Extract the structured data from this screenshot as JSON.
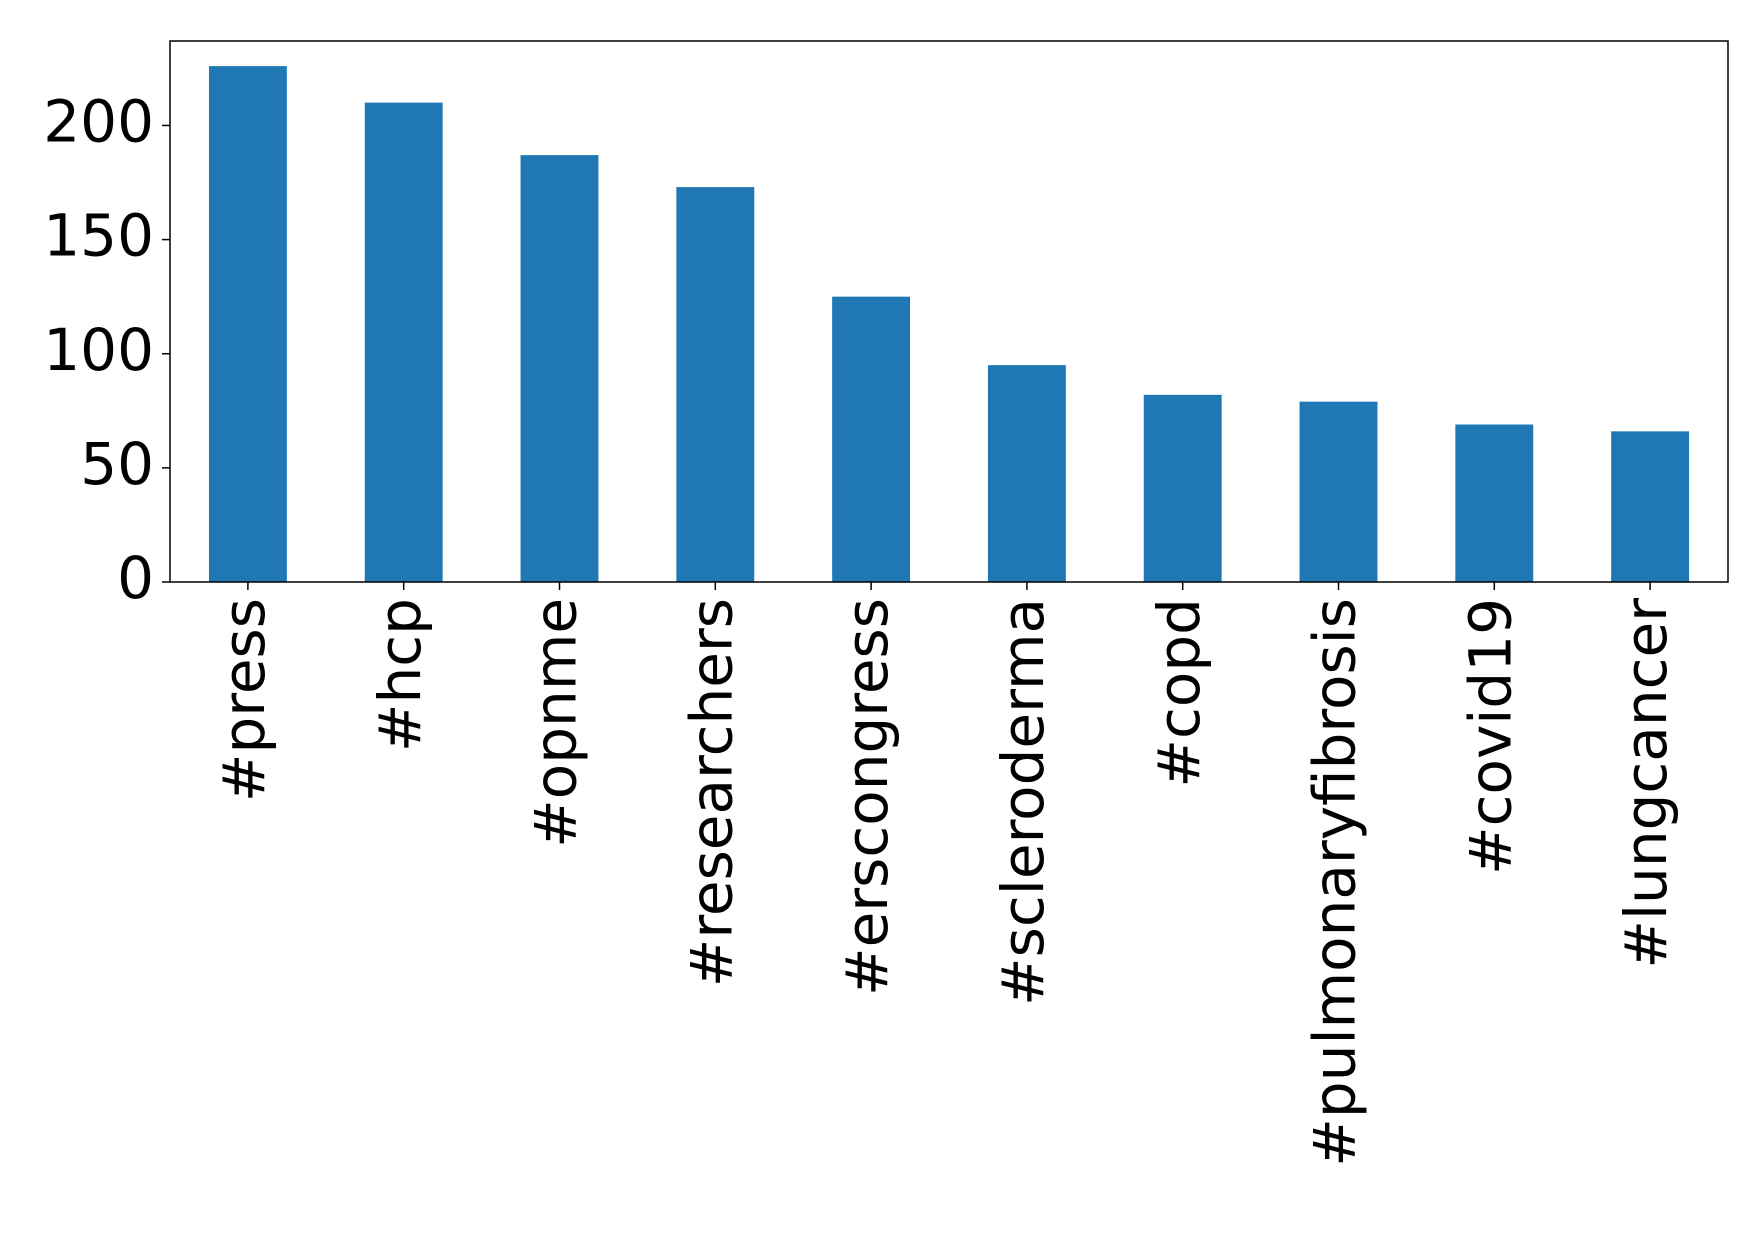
{
  "chart_data": {
    "type": "bar",
    "categories": [
      "#press",
      "#hcp",
      "#opnme",
      "#researchers",
      "#erscongress",
      "#scleroderma",
      "#copd",
      "#pulmonaryfibrosis",
      "#covid19",
      "#lungcancer"
    ],
    "values": [
      226,
      210,
      187,
      173,
      125,
      95,
      82,
      79,
      69,
      66
    ],
    "color": "#1f77b4",
    "ylim": [
      0,
      237
    ],
    "yticks": [
      0,
      50,
      100,
      150,
      200
    ],
    "grid": false
  }
}
